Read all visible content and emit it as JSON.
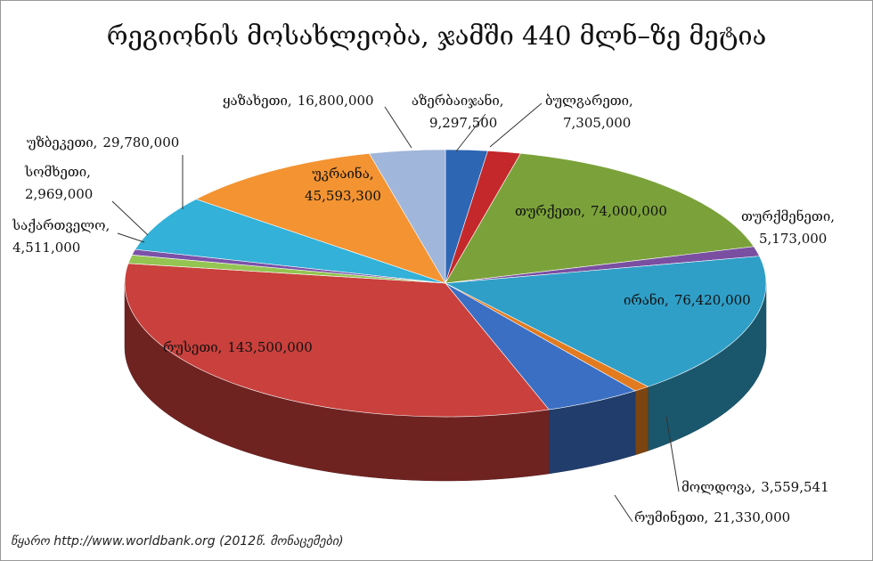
{
  "chart_data": {
    "type": "pie3d",
    "title": "რეგიონის მოსახლეობა, ჯამში 440 მლნ–ზე მეტია",
    "source": "წყარო  http://www.worldbank.org (2012წ. მონაცემები)",
    "categories": [
      "აზერბაიჯანი,",
      "ბულგარეთი,",
      "თურქეთი,",
      "თურქმენეთი,",
      "ირანი,",
      "მოლდოვა,",
      "რუმინეთი,",
      "რუსეთი,",
      "საქართველო,",
      "სომხეთი,",
      "უზბეკეთი,",
      "უკრაინა,",
      "ყაზახეთი,"
    ],
    "values": [
      9297500,
      7305000,
      74000000,
      5173000,
      76420000,
      3559541,
      21330000,
      143500000,
      4511000,
      2969000,
      29780000,
      45593300,
      16800000
    ],
    "value_labels": [
      "9,297,500",
      "7,305,000",
      "74,000,000",
      "5,173,000",
      "76,420,000",
      "3,559,541",
      "21,330,000",
      "143,500,000",
      "4,511,000",
      "2,969,000",
      "29,780,000",
      "45,593,300",
      "16,800,000"
    ],
    "colors": [
      "#2d66b3",
      "#c4282b",
      "#7ba23a",
      "#7a4fa2",
      "#2f9fc7",
      "#e27b1f",
      "#3b6fc4",
      "#c9403c",
      "#94c452",
      "#7b52a8",
      "#33b1d8",
      "#f39331",
      "#a0b6da"
    ]
  }
}
